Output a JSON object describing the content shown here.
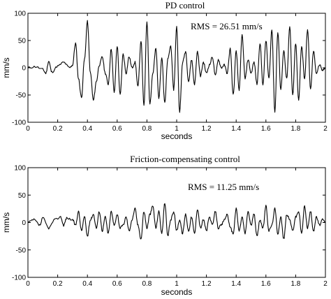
{
  "chart_data": [
    {
      "type": "line",
      "title": "PD control",
      "annotation": "RMS = 26.51 mm/s",
      "xlabel": "seconds",
      "ylabel": "mm/s",
      "xlim": [
        0,
        2
      ],
      "ylim": [
        -100,
        100
      ],
      "xticks": [
        "0",
        "0.2",
        "0.4",
        "0.6",
        "0.8",
        "1",
        "1.2",
        "1.4",
        "1.6",
        "1.8",
        "2"
      ],
      "yticks": [
        "100",
        "50",
        "0",
        "-50",
        "-100"
      ],
      "series": [
        {
          "x": [
            0,
            0.05,
            0.1,
            0.12,
            0.14,
            0.16,
            0.2,
            0.24,
            0.28,
            0.3,
            0.32,
            0.34,
            0.36,
            0.38,
            0.4,
            0.42,
            0.44,
            0.46,
            0.48,
            0.5,
            0.52,
            0.54,
            0.56,
            0.58,
            0.6,
            0.62,
            0.64,
            0.66,
            0.68,
            0.7,
            0.72,
            0.74,
            0.76,
            0.78,
            0.8,
            0.82,
            0.84,
            0.86,
            0.88,
            0.9,
            0.92,
            0.94,
            0.96,
            0.98,
            1.0,
            1.02,
            1.04,
            1.06,
            1.08,
            1.1,
            1.12,
            1.14,
            1.16,
            1.18,
            1.2,
            1.22,
            1.24,
            1.26,
            1.28,
            1.3,
            1.32,
            1.34,
            1.36,
            1.38,
            1.4,
            1.42,
            1.44,
            1.46,
            1.48,
            1.5,
            1.52,
            1.54,
            1.56,
            1.58,
            1.6,
            1.62,
            1.64,
            1.66,
            1.68,
            1.7,
            1.72,
            1.74,
            1.76,
            1.78,
            1.8,
            1.82,
            1.84,
            1.86,
            1.88,
            1.9,
            1.92,
            1.94,
            1.96,
            1.98,
            2.0
          ],
          "y": [
            0,
            2,
            -3,
            -10,
            12,
            -8,
            3,
            10,
            0,
            5,
            45,
            -20,
            -55,
            15,
            85,
            -10,
            -60,
            -25,
            5,
            20,
            -10,
            -30,
            35,
            -45,
            40,
            -50,
            25,
            -10,
            20,
            0,
            10,
            -35,
            50,
            -70,
            85,
            -65,
            -10,
            35,
            -55,
            20,
            -65,
            15,
            40,
            -40,
            75,
            -80,
            10,
            30,
            -25,
            15,
            -30,
            30,
            -15,
            10,
            -10,
            5,
            20,
            -15,
            15,
            0,
            5,
            -10,
            35,
            -50,
            30,
            -40,
            60,
            -20,
            15,
            -10,
            10,
            -30,
            45,
            -30,
            50,
            -20,
            70,
            -80,
            65,
            -40,
            30,
            -20,
            75,
            -50,
            45,
            -60,
            40,
            -20,
            70,
            -40,
            30,
            -10,
            5,
            -5,
            0
          ]
        }
      ]
    },
    {
      "type": "line",
      "title": "Friction-compensating  control",
      "annotation": "RMS = 11.25 mm/s",
      "xlabel": "seconds",
      "ylabel": "mm/s",
      "xlim": [
        0,
        2
      ],
      "ylim": [
        -100,
        100
      ],
      "xticks": [
        "0",
        "0.2",
        "0.4",
        "0.6",
        "0.8",
        "1",
        "1.2",
        "1.4",
        "1.6",
        "1.8",
        "2"
      ],
      "yticks": [
        "100",
        "50",
        "0",
        "-50",
        "-100"
      ],
      "series": [
        {
          "x": [
            0,
            0.04,
            0.08,
            0.1,
            0.14,
            0.18,
            0.22,
            0.24,
            0.26,
            0.3,
            0.32,
            0.34,
            0.36,
            0.38,
            0.4,
            0.42,
            0.44,
            0.46,
            0.48,
            0.5,
            0.52,
            0.54,
            0.56,
            0.58,
            0.6,
            0.62,
            0.64,
            0.66,
            0.68,
            0.7,
            0.72,
            0.74,
            0.76,
            0.78,
            0.8,
            0.82,
            0.84,
            0.86,
            0.88,
            0.9,
            0.92,
            0.94,
            0.96,
            0.98,
            1.0,
            1.02,
            1.04,
            1.06,
            1.08,
            1.1,
            1.12,
            1.14,
            1.16,
            1.18,
            1.2,
            1.22,
            1.24,
            1.26,
            1.28,
            1.3,
            1.32,
            1.34,
            1.36,
            1.38,
            1.4,
            1.42,
            1.44,
            1.46,
            1.48,
            1.5,
            1.52,
            1.54,
            1.56,
            1.58,
            1.6,
            1.62,
            1.64,
            1.66,
            1.68,
            1.7,
            1.72,
            1.74,
            1.76,
            1.78,
            1.8,
            1.82,
            1.84,
            1.86,
            1.88,
            1.9,
            1.92,
            1.94,
            1.96,
            1.98,
            2.0
          ],
          "y": [
            0,
            5,
            -5,
            8,
            -10,
            5,
            10,
            -5,
            8,
            5,
            -5,
            20,
            -15,
            10,
            -25,
            5,
            15,
            -10,
            20,
            -15,
            10,
            -20,
            20,
            -5,
            15,
            -10,
            -5,
            10,
            -15,
            5,
            25,
            -5,
            -30,
            20,
            -10,
            15,
            30,
            -10,
            20,
            -20,
            35,
            -25,
            5,
            20,
            -15,
            5,
            -20,
            15,
            -15,
            10,
            -20,
            25,
            -10,
            5,
            -15,
            10,
            -5,
            20,
            -10,
            -5,
            5,
            15,
            -10,
            -20,
            25,
            -15,
            10,
            -20,
            20,
            -5,
            15,
            -25,
            5,
            -10,
            30,
            -15,
            -5,
            25,
            -20,
            10,
            -30,
            15,
            5,
            -15,
            10,
            20,
            -20,
            30,
            -10,
            20,
            -15,
            10,
            -5,
            5,
            0
          ]
        }
      ]
    }
  ]
}
